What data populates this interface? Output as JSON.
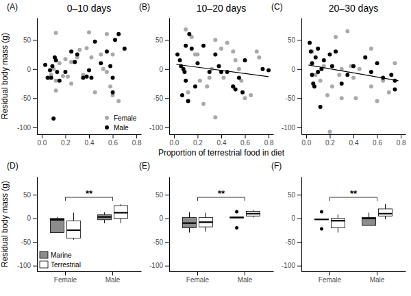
{
  "chart_data": [
    {
      "type": "scatter",
      "label": "(A)",
      "title": "0–10 days",
      "ylabel": "Residual body mass (g)",
      "xlim": [
        -0.04,
        0.84
      ],
      "xticks": [
        {
          "value": 0,
          "label": "0.0"
        },
        0.2,
        0.4,
        0.6,
        0.8
      ],
      "ylim": [
        -112,
        88
      ],
      "yticks": [
        -100,
        -50,
        0,
        50
      ],
      "legend": "bottom-right",
      "marker": "circle",
      "series": [
        {
          "name": "Female",
          "color": "#a9a9a9",
          "x": [
            0.06,
            0.08,
            0.1,
            0.12,
            0.12,
            0.12,
            0.15,
            0.18,
            0.2,
            0.22,
            0.25,
            0.25,
            0.3,
            0.32,
            0.35,
            0.38,
            0.4,
            0.42,
            0.45,
            0.5,
            0.52,
            0.55,
            0.55,
            0.58,
            0.6,
            0.6,
            0.65
          ],
          "values": [
            -15,
            -10,
            0,
            -20,
            -37,
            62,
            10,
            -12,
            17,
            -13,
            12,
            -25,
            20,
            33,
            -10,
            36,
            63,
            20,
            -40,
            25,
            0,
            -5,
            60,
            -30,
            -45,
            25,
            -55
          ]
        },
        {
          "name": "Male",
          "color": "#000000",
          "x": [
            0.03,
            0.05,
            0.07,
            0.08,
            0.09,
            0.1,
            0.11,
            0.12,
            0.13,
            0.15,
            0.2,
            0.25,
            0.28,
            0.3,
            0.35,
            0.38,
            0.4,
            0.42,
            0.45,
            0.5,
            0.55,
            0.58,
            0.6,
            0.6,
            0.62,
            0.65,
            0.7
          ],
          "values": [
            7,
            -15,
            -2,
            -15,
            5,
            -85,
            20,
            15,
            -5,
            -20,
            -5,
            30,
            12,
            25,
            -15,
            -13,
            -2,
            -15,
            47,
            10,
            30,
            5,
            -40,
            -15,
            50,
            60,
            35
          ]
        }
      ]
    },
    {
      "type": "scatter",
      "label": "(B)",
      "title": "10–20 days",
      "xlabel": "Proportion of terrestrial food in diet",
      "xlim": [
        -0.04,
        0.84
      ],
      "xticks": [
        {
          "value": 0,
          "label": "0.0"
        },
        0.2,
        0.4,
        0.6,
        0.8
      ],
      "ylim": [
        -112,
        88
      ],
      "yticks": [
        -100,
        -50,
        0,
        50
      ],
      "marker": "circle",
      "series": [
        {
          "color": "#a9a9a9",
          "x": [
            0.1,
            0.12,
            0.15,
            0.18,
            0.2,
            0.22,
            0.25,
            0.28,
            0.3,
            0.32,
            0.35,
            0.35,
            0.4,
            0.42,
            0.45,
            0.5,
            0.5,
            0.52,
            0.55,
            0.57,
            0.6,
            0.65,
            0.7,
            0.72
          ],
          "values": [
            68,
            -40,
            55,
            25,
            25,
            -20,
            -60,
            -30,
            -15,
            0,
            -83,
            50,
            35,
            -15,
            45,
            30,
            -30,
            15,
            0,
            -20,
            -50,
            -45,
            30,
            20
          ]
        },
        {
          "color": "#000000",
          "x": [
            0.03,
            0.05,
            0.06,
            0.07,
            0.08,
            0.09,
            0.1,
            0.1,
            0.12,
            0.13,
            0.15,
            0.18,
            0.2,
            0.25,
            0.3,
            0.35,
            0.38,
            0.4,
            0.45,
            0.5,
            0.52,
            0.55,
            0.58,
            0.6,
            0.75,
            0.8
          ],
          "values": [
            25,
            15,
            5,
            -45,
            0,
            -5,
            -20,
            40,
            -55,
            60,
            35,
            -30,
            10,
            40,
            -5,
            25,
            5,
            -5,
            -5,
            -30,
            -35,
            -15,
            -40,
            15,
            0,
            -2
          ]
        }
      ],
      "trend": {
        "color": "#000000",
        "x": [
          0.02,
          0.8
        ],
        "values": [
          8,
          -13
        ]
      }
    },
    {
      "type": "scatter",
      "label": "(C)",
      "title": "20–30 days",
      "xlim": [
        -0.04,
        0.84
      ],
      "xticks": [
        {
          "value": 0,
          "label": "0.0"
        },
        0.2,
        0.4,
        0.6,
        0.8
      ],
      "ylim": [
        -112,
        88
      ],
      "yticks": [
        -100,
        -50,
        0,
        50
      ],
      "marker": "circle",
      "series": [
        {
          "color": "#a9a9a9",
          "x": [
            0.05,
            0.08,
            0.1,
            0.12,
            0.15,
            0.18,
            0.2,
            0.22,
            0.25,
            0.28,
            0.3,
            0.3,
            0.35,
            0.38,
            0.4,
            0.42,
            0.45,
            0.55,
            0.55,
            0.6,
            0.65,
            0.7,
            0.75
          ],
          "values": [
            30,
            -10,
            -5,
            -20,
            5,
            -45,
            -108,
            -30,
            55,
            -10,
            0,
            -50,
            65,
            5,
            -15,
            -50,
            0,
            35,
            -30,
            -55,
            -20,
            -40,
            10
          ]
        },
        {
          "color": "#000000",
          "x": [
            0.03,
            0.04,
            0.05,
            0.05,
            0.06,
            0.07,
            0.08,
            0.1,
            0.1,
            0.12,
            0.13,
            0.15,
            0.2,
            0.22,
            0.25,
            0.3,
            0.35,
            0.4,
            0.5,
            0.55,
            0.6,
            0.65,
            0.72,
            0.75,
            0.75
          ],
          "values": [
            45,
            30,
            10,
            -10,
            -25,
            -30,
            20,
            35,
            -5,
            -65,
            0,
            15,
            25,
            5,
            30,
            -25,
            -10,
            5,
            20,
            -5,
            10,
            -15,
            -10,
            -20,
            -35
          ]
        }
      ],
      "trend": {
        "color": "#000000",
        "x": [
          0.02,
          0.78
        ],
        "values": [
          7,
          -20
        ]
      }
    },
    {
      "type": "box",
      "label": "(D)",
      "ylabel": "Residual body mass (g)",
      "categories": [
        "Female",
        "Male"
      ],
      "ylim": [
        -112,
        88
      ],
      "yticks": [
        -100,
        -50,
        0,
        50
      ],
      "legend": "bottom-left",
      "annotations": [
        {
          "text": "**"
        }
      ],
      "series": [
        {
          "name": "Marine",
          "color": "#8c8c8c",
          "values": [
            {
              "min": -31,
              "q1": -30,
              "median": -3,
              "q3": 0,
              "max": 3
            },
            {
              "min": -10,
              "q1": -3,
              "median": 3,
              "q3": 8,
              "max": 13
            }
          ]
        },
        {
          "name": "Terrestrial",
          "color": "#ffffff",
          "values": [
            {
              "min": -45,
              "q1": -42,
              "median": -25,
              "q3": -5,
              "max": 12
            },
            {
              "min": -10,
              "q1": 0,
              "median": 12,
              "q3": 27,
              "max": 30
            }
          ]
        }
      ]
    },
    {
      "type": "box",
      "label": "(E)",
      "categories": [
        "Female",
        "Male"
      ],
      "ylim": [
        -112,
        88
      ],
      "yticks": [
        -100,
        -50,
        0,
        50
      ],
      "annotations": [
        {
          "text": "**"
        }
      ],
      "series": [
        {
          "color": "#8c8c8c",
          "values": [
            {
              "min": -30,
              "q1": -20,
              "median": -10,
              "q3": 2,
              "max": 13
            },
            {
              "min": 1,
              "q1": 1,
              "median": 2,
              "q3": 3,
              "max": 3,
              "outliers": [
                14,
                -20
              ]
            }
          ]
        },
        {
          "color": "#ffffff",
          "values": [
            {
              "min": -28,
              "q1": -18,
              "median": -8,
              "q3": 2,
              "max": 12
            },
            {
              "min": 2,
              "q1": 5,
              "median": 10,
              "q3": 15,
              "max": 18
            }
          ]
        }
      ]
    },
    {
      "type": "box",
      "label": "(F)",
      "categories": [
        "Female",
        "Male"
      ],
      "ylim": [
        -112,
        88
      ],
      "yticks": [
        -100,
        -50,
        0,
        50
      ],
      "annotations": [
        {
          "text": "**"
        }
      ],
      "series": [
        {
          "color": "#8c8c8c",
          "values": [
            {
              "min": -3,
              "q1": -3,
              "median": -2,
              "q3": -1,
              "max": -1,
              "outliers": [
                14,
                -22
              ]
            },
            {
              "min": -15,
              "q1": -15,
              "median": 0,
              "q3": 2,
              "max": 12
            }
          ]
        },
        {
          "color": "#ffffff",
          "values": [
            {
              "min": -30,
              "q1": -20,
              "median": -5,
              "q3": 0,
              "max": 8
            },
            {
              "min": -2,
              "q1": 5,
              "median": 10,
              "q3": 20,
              "max": 30
            }
          ]
        }
      ]
    }
  ]
}
